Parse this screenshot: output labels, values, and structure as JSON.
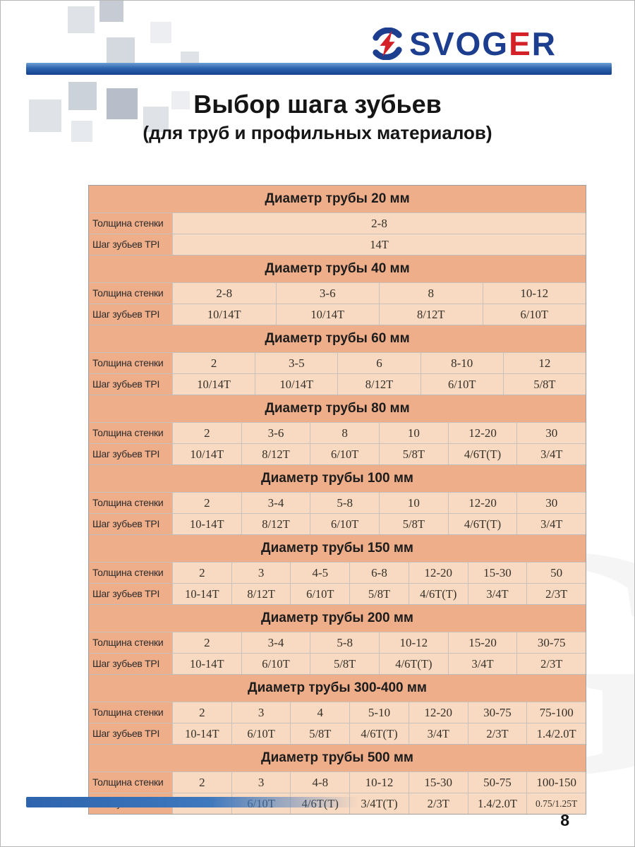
{
  "logo": {
    "part1": "SVOG",
    "part2": "E",
    "part3": "R"
  },
  "title": {
    "line1": "Выбор шага зубьев",
    "line2": "(для труб и профильных материалов)"
  },
  "page_number": "8",
  "watermark": "G",
  "colors": {
    "accent_blue": "#1d3e8e",
    "accent_red": "#d42127",
    "header_bg": "#efae8a",
    "cell_bg": "#f8d9c1"
  },
  "table": {
    "row_labels": [
      "Толщина стенки",
      "Шаг зубьев TPI"
    ],
    "sections": [
      {
        "title": "Диаметр трубы 20 мм",
        "thickness": [
          "2-8"
        ],
        "tpi": [
          "14Т"
        ]
      },
      {
        "title": "Диаметр трубы 40 мм",
        "thickness": [
          "2-8",
          "3-6",
          "8",
          "10-12"
        ],
        "tpi": [
          "10/14Т",
          "10/14Т",
          "8/12Т",
          "6/10Т"
        ]
      },
      {
        "title": "Диаметр трубы 60 мм",
        "thickness": [
          "2",
          "3-5",
          "6",
          "8-10",
          "12"
        ],
        "tpi": [
          "10/14Т",
          "10/14Т",
          "8/12Т",
          "6/10Т",
          "5/8Т"
        ]
      },
      {
        "title": "Диаметр трубы 80 мм",
        "thickness": [
          "2",
          "3-6",
          "8",
          "10",
          "12-20",
          "30"
        ],
        "tpi": [
          "10/14Т",
          "8/12Т",
          "6/10Т",
          "5/8Т",
          "4/6Т(Т)",
          "3/4Т"
        ]
      },
      {
        "title": "Диаметр трубы 100 мм",
        "thickness": [
          "2",
          "3-4",
          "5-8",
          "10",
          "12-20",
          "30"
        ],
        "tpi": [
          "10-14Т",
          "8/12Т",
          "6/10Т",
          "5/8Т",
          "4/6Т(Т)",
          "3/4Т"
        ]
      },
      {
        "title": "Диаметр трубы 150 мм",
        "thickness": [
          "2",
          "3",
          "4-5",
          "6-8",
          "12-20",
          "15-30",
          "50"
        ],
        "tpi": [
          "10-14Т",
          "8/12Т",
          "6/10Т",
          "5/8Т",
          "4/6Т(Т)",
          "3/4Т",
          "2/3Т"
        ]
      },
      {
        "title": "Диаметр трубы 200 мм",
        "thickness": [
          "2",
          "3-4",
          "5-8",
          "10-12",
          "15-20",
          "30-75"
        ],
        "tpi": [
          "10-14Т",
          "6/10Т",
          "5/8Т",
          "4/6Т(Т)",
          "3/4Т",
          "2/3Т"
        ]
      },
      {
        "title": "Диаметр трубы 300-400 мм",
        "thickness": [
          "2",
          "3",
          "4",
          "5-10",
          "12-20",
          "30-75",
          "75-100"
        ],
        "tpi": [
          "10-14Т",
          "6/10Т",
          "5/8Т",
          "4/6Т(Т)",
          "3/4Т",
          "2/3Т",
          "1.4/2.0Т"
        ]
      },
      {
        "title": "Диаметр трубы 500 мм",
        "thickness": [
          "2",
          "3",
          "4-8",
          "10-12",
          "15-30",
          "50-75",
          "100-150"
        ],
        "tpi": [
          "8-12Т",
          "6/10Т",
          "4/6Т(Т)",
          "3/4Т(Т)",
          "2/3Т",
          "1.4/2.0Т",
          "0.75/1.25Т"
        ]
      }
    ]
  }
}
